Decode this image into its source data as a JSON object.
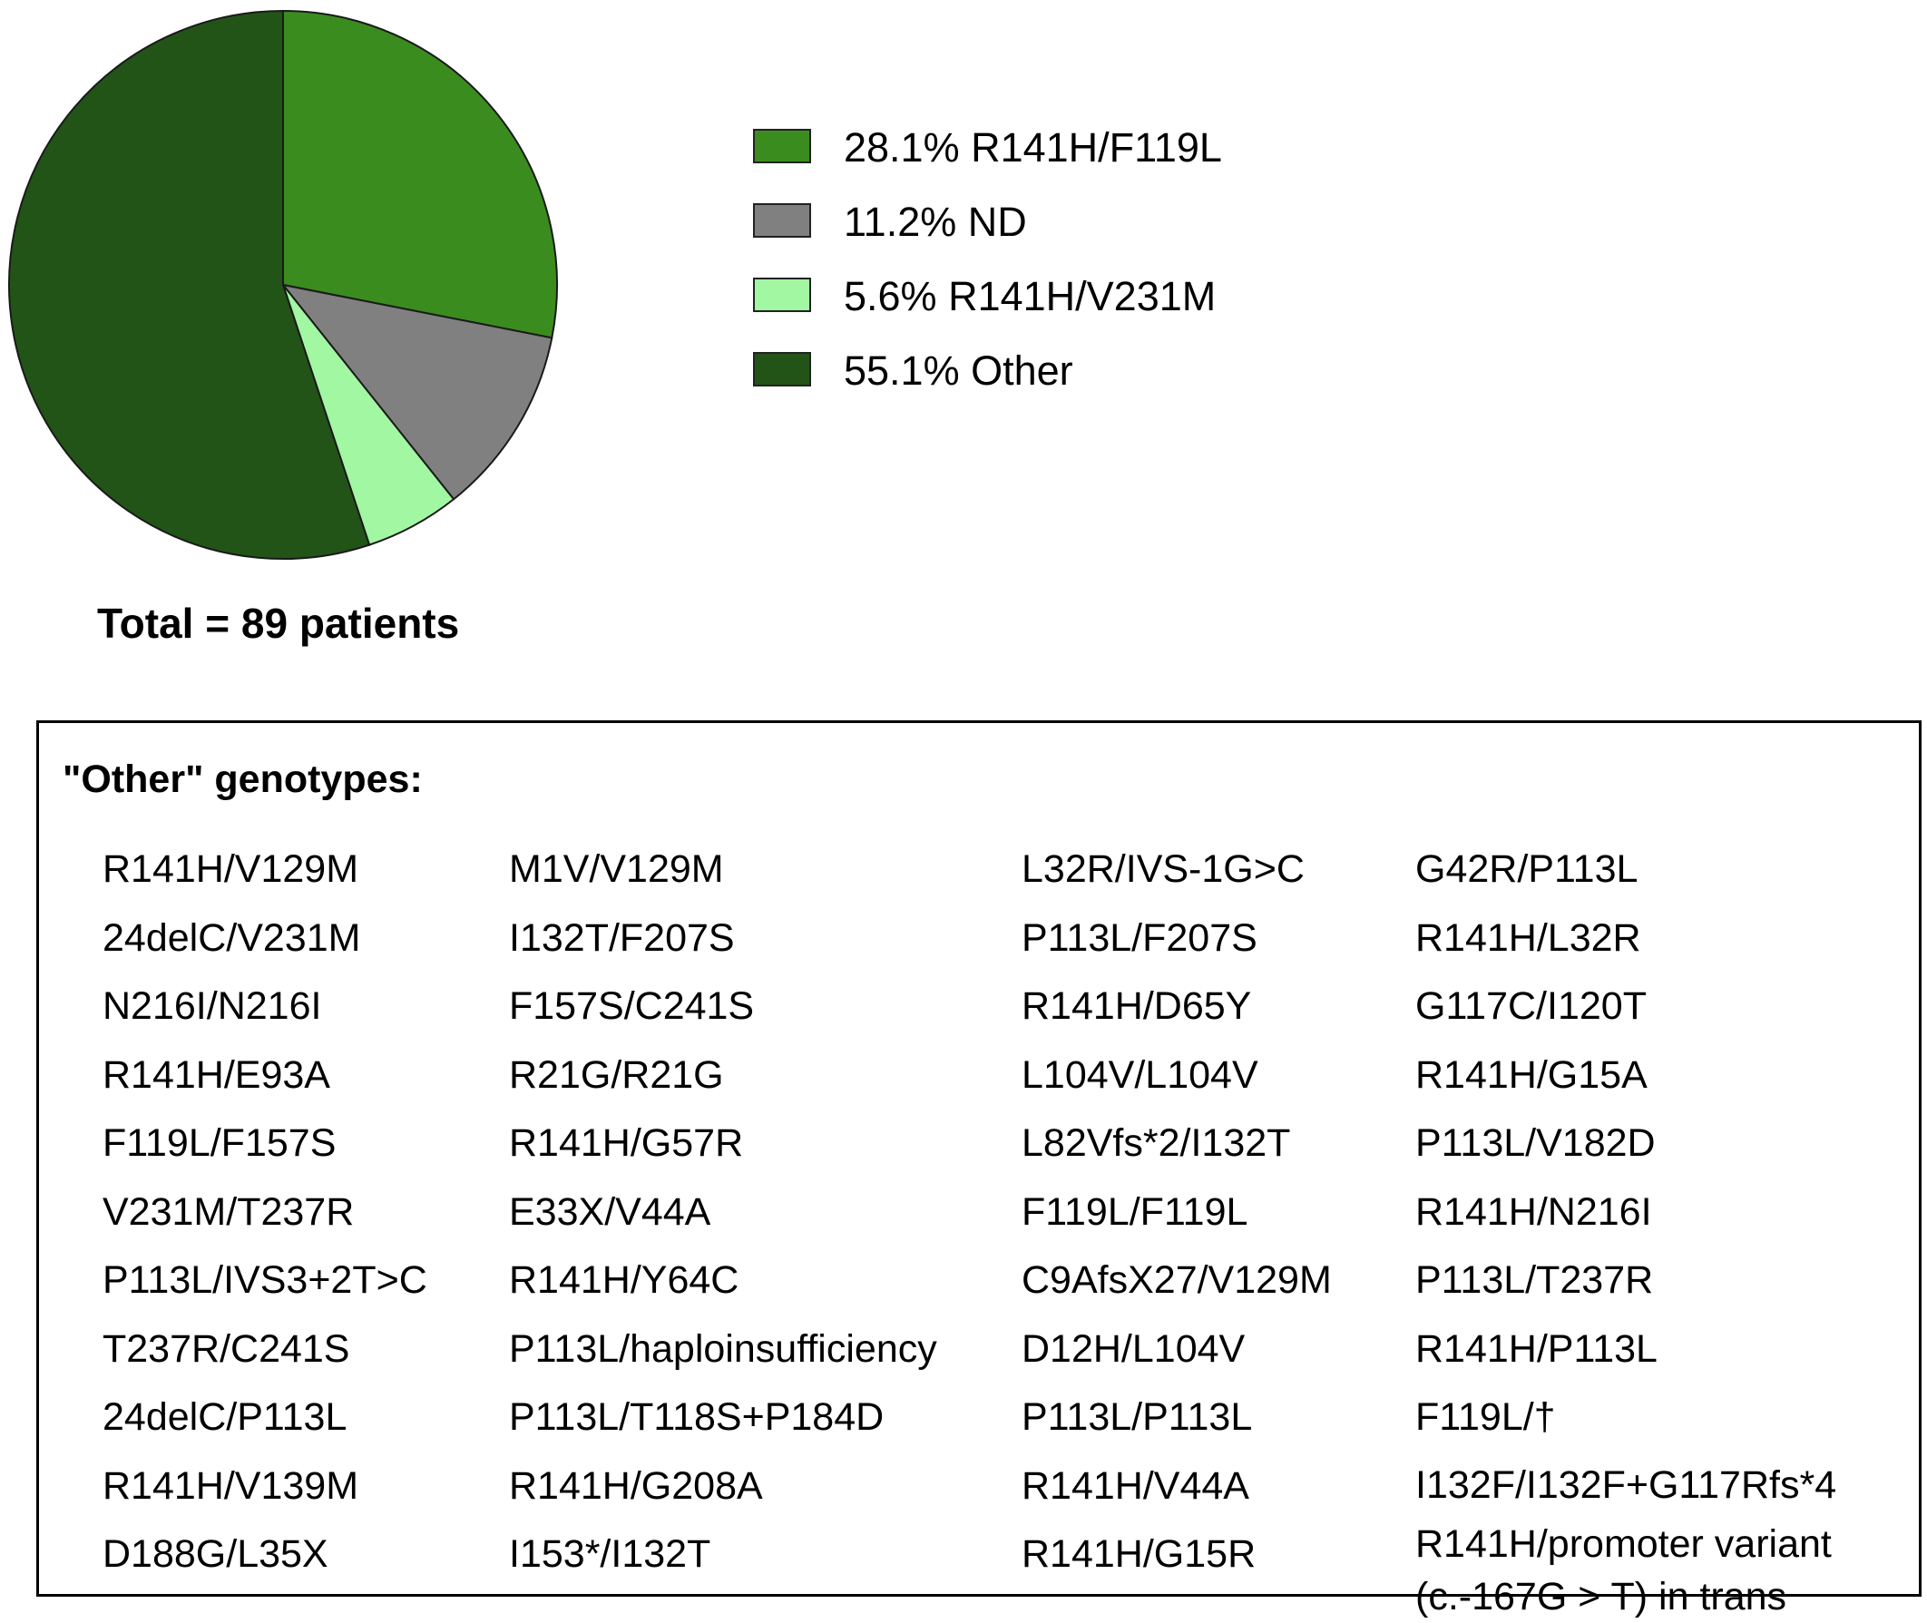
{
  "chart_data": {
    "type": "pie",
    "slices": [
      {
        "label": "R141H/F119L",
        "percent": 28.1,
        "legend_text": "28.1%  R141H/F119L",
        "color": "#3a8c1f"
      },
      {
        "label": "ND",
        "percent": 11.2,
        "legend_text": "11.2%  ND",
        "color": "#808080"
      },
      {
        "label": "R141H/V231M",
        "percent": 5.6,
        "legend_text": "5.6%  R141H/V231M",
        "color": "#a2f7a2"
      },
      {
        "label": "Other",
        "percent": 55.1,
        "legend_text": "55.1%  Other",
        "color": "#225417"
      }
    ],
    "start_angle_deg": 0,
    "direction": "clockwise",
    "legend_position": "right"
  },
  "total_label": "Total = 89 patients",
  "other_box": {
    "title": "\"Other\" genotypes:",
    "columns": [
      [
        "R141H/V129M",
        "24delC/V231M",
        "N216I/N216I",
        "R141H/E93A",
        "F119L/F157S",
        "V231M/T237R",
        "P113L/IVS3+2T>C",
        "T237R/C241S",
        "24delC/P113L",
        "R141H/V139M",
        "D188G/L35X"
      ],
      [
        "M1V/V129M",
        "I132T/F207S",
        "F157S/C241S",
        "R21G/R21G",
        "R141H/G57R",
        "E33X/V44A",
        "R141H/Y64C",
        "P113L/haploinsufficiency",
        "P113L/T118S+P184D",
        "R141H/G208A",
        "I153*/I132T"
      ],
      [
        "L32R/IVS-1G>C",
        "P113L/F207S",
        "R141H/D65Y",
        "L104V/L104V",
        "L82Vfs*2/I132T",
        "F119L/F119L",
        "C9AfsX27/V129M",
        "D12H/L104V",
        "P113L/P113L",
        "R141H/V44A",
        "R141H/G15R"
      ],
      [
        "G42R/P113L",
        "R141H/L32R",
        "G117C/I120T",
        "R141H/G15A",
        "P113L/V182D",
        "R141H/N216I",
        "P113L/T237R",
        "R141H/P113L",
        "F119L/†",
        "I132F/I132F+G117Rfs*4",
        "R141H/promoter variant",
        "(c.-167G > T) in trans"
      ]
    ]
  }
}
